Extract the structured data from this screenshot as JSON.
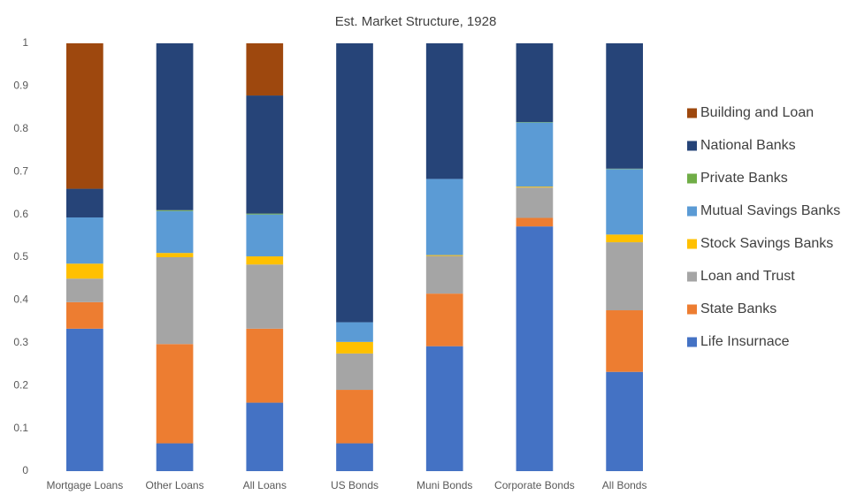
{
  "chart_data": {
    "type": "stacked_bar",
    "title": "Est. Market Structure, 1928",
    "categories": [
      "Mortgage Loans",
      "Other Loans",
      "All Loans",
      "US Bonds",
      "Muni Bonds",
      "Corporate Bonds",
      "All Bonds"
    ],
    "series": [
      {
        "name": "Life Insurnace",
        "color": "#4472c4",
        "values": [
          0.333,
          0.065,
          0.16,
          0.065,
          0.292,
          0.572,
          0.232
        ]
      },
      {
        "name": "State Banks",
        "color": "#ed7d31",
        "values": [
          0.062,
          0.232,
          0.173,
          0.125,
          0.123,
          0.02,
          0.144
        ]
      },
      {
        "name": "Loan and Trust",
        "color": "#a5a5a5",
        "values": [
          0.055,
          0.203,
          0.15,
          0.085,
          0.088,
          0.071,
          0.159
        ]
      },
      {
        "name": "Stock Savings Banks",
        "color": "#ffc000",
        "values": [
          0.035,
          0.01,
          0.019,
          0.027,
          0.002,
          0.002,
          0.018
        ]
      },
      {
        "name": "Mutual Savings Banks",
        "color": "#5b9bd5",
        "values": [
          0.108,
          0.098,
          0.098,
          0.046,
          0.178,
          0.15,
          0.153
        ]
      },
      {
        "name": "Private Banks",
        "color": "#70ad47",
        "values": [
          0,
          0.002,
          0.002,
          0,
          0,
          0.001,
          0.001
        ]
      },
      {
        "name": "National Banks",
        "color": "#264478",
        "values": [
          0.067,
          0.39,
          0.276,
          0.652,
          0.317,
          0.184,
          0.293
        ]
      },
      {
        "name": "Building and Loan",
        "color": "#9e480e",
        "values": [
          0.34,
          0,
          0.122,
          0,
          0,
          0,
          0
        ]
      }
    ],
    "ylim": [
      0,
      1
    ],
    "yticks": [
      0,
      0.1,
      0.2,
      0.3,
      0.4,
      0.5,
      0.6,
      0.7,
      0.8,
      0.9,
      1
    ],
    "grid": false,
    "legend": "right"
  }
}
